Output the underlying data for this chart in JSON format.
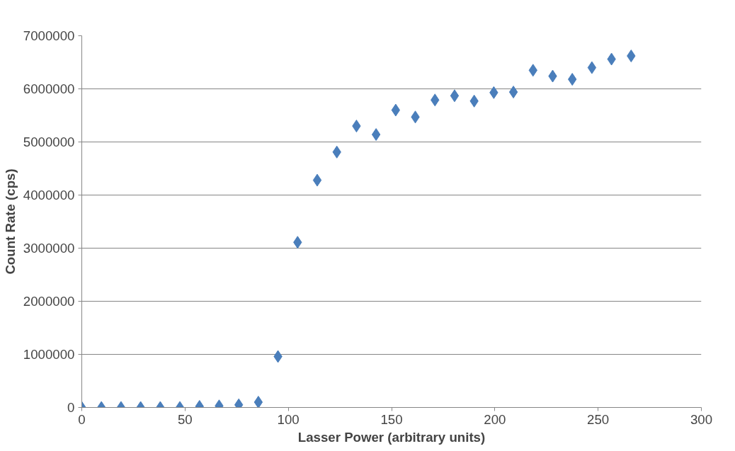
{
  "chart_data": {
    "type": "scatter",
    "xlabel": "Lasser Power (arbitrary units)",
    "ylabel": "Count Rate (cps)",
    "x": [
      0,
      9.5,
      19,
      28.5,
      38,
      47.5,
      57,
      66.5,
      76,
      85.5,
      95,
      104.5,
      114,
      123.5,
      133,
      142.5,
      152,
      161.5,
      171,
      180.5,
      190,
      199.5,
      209,
      218.5,
      228,
      237.5,
      247,
      256.5,
      266
    ],
    "series": [
      {
        "color": "#4a7ebb",
        "values": [
          0,
          0,
          0,
          0,
          0,
          0,
          20000,
          30000,
          50000,
          100000,
          960000,
          3110000,
          4280000,
          4810000,
          5300000,
          5140000,
          5600000,
          5470000,
          5790000,
          5870000,
          5770000,
          5930000,
          5940000,
          6350000,
          6240000,
          6180000,
          6400000,
          6560000,
          6620000
        ]
      }
    ],
    "xlim": [
      0,
      300
    ],
    "ylim": [
      0,
      7000000
    ],
    "xticks": [
      0,
      50,
      100,
      150,
      200,
      250,
      300
    ],
    "yticks": [
      0,
      1000000,
      2000000,
      3000000,
      4000000,
      5000000,
      6000000,
      7000000
    ],
    "grid": "y",
    "marker": "diamond"
  }
}
